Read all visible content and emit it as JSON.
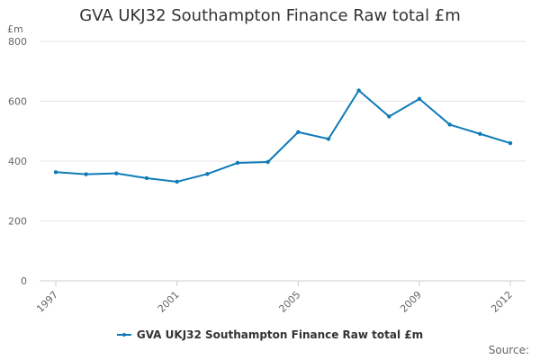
{
  "chart_data": {
    "type": "line",
    "title": "GVA UKJ32 Southampton Finance Raw total £m",
    "y_unit": "£m",
    "xlabel": "",
    "ylabel": "",
    "x": [
      1997,
      1998,
      1999,
      2000,
      2001,
      2002,
      2003,
      2004,
      2005,
      2006,
      2007,
      2008,
      2009,
      2010,
      2011,
      2012
    ],
    "x_tick_labels": [
      "1997",
      "2001",
      "2005",
      "2009",
      "2012"
    ],
    "y_ticks": [
      0,
      200,
      400,
      600,
      800
    ],
    "ylim": [
      0,
      800
    ],
    "grid": true,
    "legend_position": "bottom",
    "series": [
      {
        "name": "GVA UKJ32 Southampton Finance Raw total £m",
        "color": "#0e7bb8",
        "values": [
          363,
          356,
          359,
          343,
          331,
          357,
          394,
          397,
          497,
          474,
          636,
          549,
          608,
          522,
          491,
          460
        ]
      }
    ]
  },
  "source_label": "Source:"
}
